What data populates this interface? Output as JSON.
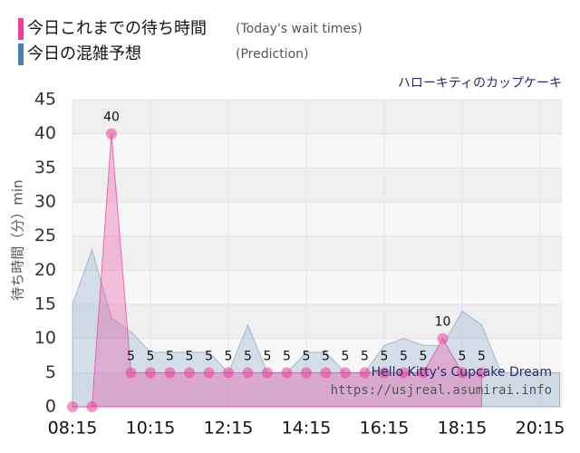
{
  "chart_data": {
    "type": "area",
    "subtitle": "ハローキティのカップケーキ",
    "ylabel": "待ち時間（分）min",
    "watermark": [
      "Hello Kitty's Cupcake Dream",
      "https://usjreal.asumirai.info"
    ],
    "xlim": [
      "08:15",
      "20:45"
    ],
    "xticks": [
      "08:15",
      "10:15",
      "12:15",
      "14:15",
      "16:15",
      "18:15",
      "20:15"
    ],
    "ylim": [
      0,
      45
    ],
    "yticks": [
      0,
      5,
      10,
      15,
      20,
      25,
      30,
      35,
      40,
      45
    ],
    "grid": true,
    "series": [
      {
        "name": "今日の混雑予想",
        "legend_note": "(Prediction)",
        "color": "#4a7fb0",
        "x": [
          "08:15",
          "08:45",
          "09:15",
          "09:45",
          "10:15",
          "10:45",
          "11:15",
          "11:45",
          "12:15",
          "12:45",
          "13:15",
          "13:45",
          "14:15",
          "14:45",
          "15:15",
          "15:45",
          "16:15",
          "16:45",
          "17:15",
          "17:45",
          "18:15",
          "18:45",
          "19:15",
          "19:45",
          "20:15",
          "20:45"
        ],
        "values": [
          15,
          23,
          13,
          11,
          8,
          8,
          8,
          8,
          5,
          12,
          5,
          5,
          8,
          8,
          5,
          5,
          9,
          10,
          9,
          9,
          14,
          12,
          5,
          5,
          5,
          5
        ]
      },
      {
        "name": "今日これまでの待ち時間",
        "legend_note": "(Today's wait times)",
        "color": "#ee3d9a",
        "x": [
          "08:15",
          "08:45",
          "09:15",
          "09:45",
          "10:15",
          "10:45",
          "11:15",
          "11:45",
          "12:15",
          "12:45",
          "13:15",
          "13:45",
          "14:15",
          "14:45",
          "15:15",
          "15:45",
          "16:15",
          "16:45",
          "17:15",
          "17:45",
          "18:15",
          "18:45"
        ],
        "values": [
          0,
          0,
          40,
          5,
          5,
          5,
          5,
          5,
          5,
          5,
          5,
          5,
          5,
          5,
          5,
          5,
          5,
          5,
          5,
          10,
          5,
          5
        ]
      }
    ]
  }
}
